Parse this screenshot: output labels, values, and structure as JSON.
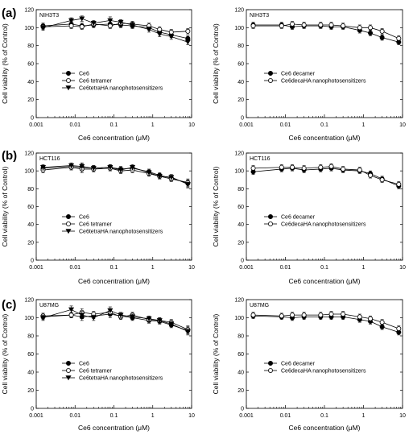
{
  "colors": {
    "axis": "#000000",
    "series_line": "#000000",
    "filled_marker": "#000000",
    "open_marker": "#ffffff"
  },
  "panel_labels": [
    "(a)",
    "(b)",
    "(c)"
  ],
  "chart_data": [
    {
      "type": "line",
      "panel": "(a)",
      "cell_line": "NIH3T3",
      "xlabel": "Ce6 concentration (μM)",
      "ylabel": "Cell viability (% of Control)",
      "xscale": "log",
      "xlim": [
        0.001,
        10
      ],
      "ylim": [
        0,
        120
      ],
      "xticks": [
        "0.001",
        "0.01",
        "0.1",
        "1",
        "10"
      ],
      "yticks": [
        "0",
        "20",
        "40",
        "60",
        "80",
        "100",
        "120"
      ],
      "legend_position": "lower-left",
      "x": [
        0.0015,
        0.008,
        0.015,
        0.03,
        0.08,
        0.15,
        0.3,
        0.8,
        1.5,
        3,
        8
      ],
      "series": [
        {
          "name": "Ce6",
          "marker": "filled-circle",
          "values": [
            102,
            104,
            102,
            103,
            104,
            103,
            102,
            100,
            95,
            92,
            88
          ],
          "errors": [
            3,
            3,
            3,
            3,
            4,
            3,
            3,
            3,
            3,
            3,
            3
          ]
        },
        {
          "name": "Ce6 tetramer",
          "marker": "open-circle",
          "values": [
            101,
            102,
            101,
            104,
            102,
            105,
            104,
            102,
            98,
            95,
            96
          ],
          "errors": [
            3,
            3,
            3,
            3,
            3,
            3,
            3,
            3,
            3,
            3,
            3
          ]
        },
        {
          "name": "Ce6tetraHA nanophotosensitizers",
          "marker": "filled-triangle",
          "values": [
            100,
            108,
            110,
            105,
            108,
            106,
            103,
            98,
            93,
            90,
            84
          ],
          "errors": [
            3,
            3,
            3,
            3,
            4,
            3,
            3,
            3,
            3,
            3,
            3
          ]
        }
      ]
    },
    {
      "type": "line",
      "panel": "(a)",
      "cell_line": "NIH3T3",
      "xlabel": "Ce6 concentration (μM)",
      "ylabel": "Cell viability (% of Control)",
      "xscale": "log",
      "xlim": [
        0.001,
        10
      ],
      "ylim": [
        0,
        120
      ],
      "xticks": [
        "0.001",
        "0.01",
        "0.1",
        "1",
        "10"
      ],
      "yticks": [
        "0",
        "20",
        "40",
        "60",
        "80",
        "100",
        "120"
      ],
      "legend_position": "lower-center",
      "x": [
        0.0015,
        0.008,
        0.015,
        0.03,
        0.08,
        0.15,
        0.3,
        0.8,
        1.5,
        3,
        8
      ],
      "series": [
        {
          "name": "Ce6 decamer",
          "marker": "filled-circle",
          "values": [
            103,
            103,
            101,
            102,
            102,
            101,
            101,
            97,
            94,
            89,
            84
          ],
          "errors": [
            3,
            3,
            3,
            3,
            3,
            3,
            3,
            3,
            3,
            3,
            3
          ]
        },
        {
          "name": "Ce6decaHA nanophotosensitizers",
          "marker": "open-circle",
          "values": [
            102,
            102,
            104,
            103,
            103,
            103,
            102,
            100,
            100,
            96,
            88
          ],
          "errors": [
            3,
            3,
            3,
            3,
            3,
            3,
            3,
            3,
            3,
            3,
            3
          ]
        }
      ]
    },
    {
      "type": "line",
      "panel": "(b)",
      "cell_line": "HCT116",
      "xlabel": "Ce6 concentration (μM)",
      "ylabel": "Cell viability (% of Control)",
      "xscale": "log",
      "xlim": [
        0.001,
        10
      ],
      "ylim": [
        0,
        120
      ],
      "xticks": [
        "0.001",
        "0.01",
        "0.1",
        "1",
        "10"
      ],
      "yticks": [
        "0",
        "20",
        "40",
        "60",
        "80",
        "100",
        "120"
      ],
      "legend_position": "lower-left",
      "x": [
        0.0015,
        0.008,
        0.015,
        0.03,
        0.08,
        0.15,
        0.3,
        0.8,
        1.5,
        3,
        8
      ],
      "series": [
        {
          "name": "Ce6",
          "marker": "filled-circle",
          "values": [
            103,
            105,
            104,
            103,
            104,
            102,
            103,
            99,
            95,
            92,
            86
          ],
          "errors": [
            3,
            3,
            4,
            3,
            3,
            3,
            3,
            3,
            3,
            3,
            4
          ]
        },
        {
          "name": "Ce6 tetramer",
          "marker": "open-circle",
          "values": [
            101,
            104,
            102,
            102,
            103,
            100,
            101,
            97,
            94,
            91,
            87
          ],
          "errors": [
            3,
            3,
            4,
            3,
            3,
            3,
            3,
            3,
            3,
            3,
            4
          ]
        },
        {
          "name": "Ce6tetraHA nanophotosensitizers",
          "marker": "filled-triangle",
          "values": [
            104,
            106,
            105,
            103,
            104,
            101,
            104,
            98,
            94,
            93,
            85
          ],
          "errors": [
            3,
            3,
            4,
            3,
            3,
            3,
            3,
            3,
            3,
            3,
            4
          ]
        }
      ]
    },
    {
      "type": "line",
      "panel": "(b)",
      "cell_line": "HCT116",
      "xlabel": "Ce6 concentration (μM)",
      "ylabel": "Cell viability (% of Control)",
      "xscale": "log",
      "xlim": [
        0.001,
        10
      ],
      "ylim": [
        0,
        120
      ],
      "xticks": [
        "0.001",
        "0.01",
        "0.1",
        "1",
        "10"
      ],
      "yticks": [
        "0",
        "20",
        "40",
        "60",
        "80",
        "100",
        "120"
      ],
      "legend_position": "lower-center",
      "x": [
        0.0015,
        0.008,
        0.015,
        0.03,
        0.08,
        0.15,
        0.3,
        0.8,
        1.5,
        3,
        8
      ],
      "series": [
        {
          "name": "Ce6 decamer",
          "marker": "filled-circle",
          "values": [
            99,
            102,
            103,
            101,
            102,
            103,
            101,
            100,
            97,
            91,
            83
          ],
          "errors": [
            3,
            3,
            3,
            3,
            3,
            3,
            3,
            3,
            3,
            3,
            3
          ]
        },
        {
          "name": "Ce6decaHA nanophotosensitizers",
          "marker": "open-circle",
          "values": [
            103,
            104,
            104,
            103,
            104,
            105,
            102,
            101,
            95,
            90,
            85
          ],
          "errors": [
            3,
            3,
            3,
            3,
            3,
            3,
            3,
            3,
            3,
            3,
            3
          ]
        }
      ]
    },
    {
      "type": "line",
      "panel": "(c)",
      "cell_line": "U87MG",
      "xlabel": "Ce6 concentration (μM)",
      "ylabel": "Cell viability (% of Control)",
      "xscale": "log",
      "xlim": [
        0.001,
        10
      ],
      "ylim": [
        0,
        120
      ],
      "xticks": [
        "0.001",
        "0.01",
        "0.1",
        "1",
        "10"
      ],
      "yticks": [
        "0",
        "20",
        "40",
        "60",
        "80",
        "100",
        "120"
      ],
      "legend_position": "lower-left",
      "x": [
        0.0015,
        0.008,
        0.015,
        0.03,
        0.08,
        0.15,
        0.3,
        0.8,
        1.5,
        3,
        8
      ],
      "series": [
        {
          "name": "Ce6",
          "marker": "filled-circle",
          "values": [
            101,
            103,
            101,
            102,
            104,
            102,
            100,
            97,
            96,
            92,
            86
          ],
          "errors": [
            3,
            3,
            4,
            3,
            4,
            3,
            3,
            3,
            3,
            3,
            4
          ]
        },
        {
          "name": "Ce6 tetramer",
          "marker": "open-circle",
          "values": [
            102,
            103,
            106,
            104,
            106,
            101,
            103,
            98,
            97,
            95,
            87
          ],
          "errors": [
            3,
            3,
            4,
            3,
            4,
            3,
            3,
            3,
            3,
            3,
            4
          ]
        },
        {
          "name": "Ce6tetraHA nanophotosensitizers",
          "marker": "filled-triangle",
          "values": [
            100,
            109,
            103,
            100,
            108,
            103,
            101,
            99,
            97,
            93,
            85
          ],
          "errors": [
            3,
            4,
            4,
            3,
            4,
            3,
            3,
            3,
            3,
            3,
            4
          ]
        }
      ]
    },
    {
      "type": "line",
      "panel": "(c)",
      "cell_line": "U87MG",
      "xlabel": "Ce6 concentration (μM)",
      "ylabel": "Cell viability (% of Control)",
      "xscale": "log",
      "xlim": [
        0.001,
        10
      ],
      "ylim": [
        0,
        120
      ],
      "xticks": [
        "0.001",
        "0.01",
        "0.1",
        "1",
        "10"
      ],
      "yticks": [
        "0",
        "20",
        "40",
        "60",
        "80",
        "100",
        "120"
      ],
      "legend_position": "lower-center",
      "x": [
        0.0015,
        0.008,
        0.015,
        0.03,
        0.08,
        0.15,
        0.3,
        0.8,
        1.5,
        3,
        8
      ],
      "series": [
        {
          "name": "Ce6 decamer",
          "marker": "filled-circle",
          "values": [
            102,
            101,
            100,
            101,
            101,
            101,
            101,
            98,
            96,
            90,
            84
          ],
          "errors": [
            3,
            3,
            3,
            3,
            3,
            3,
            3,
            3,
            3,
            3,
            3
          ]
        },
        {
          "name": "Ce6decaHA nanophotosensitizers",
          "marker": "open-circle",
          "values": [
            103,
            102,
            103,
            103,
            103,
            104,
            104,
            101,
            99,
            95,
            88
          ],
          "errors": [
            3,
            3,
            3,
            3,
            3,
            3,
            3,
            3,
            3,
            3,
            3
          ]
        }
      ]
    }
  ]
}
